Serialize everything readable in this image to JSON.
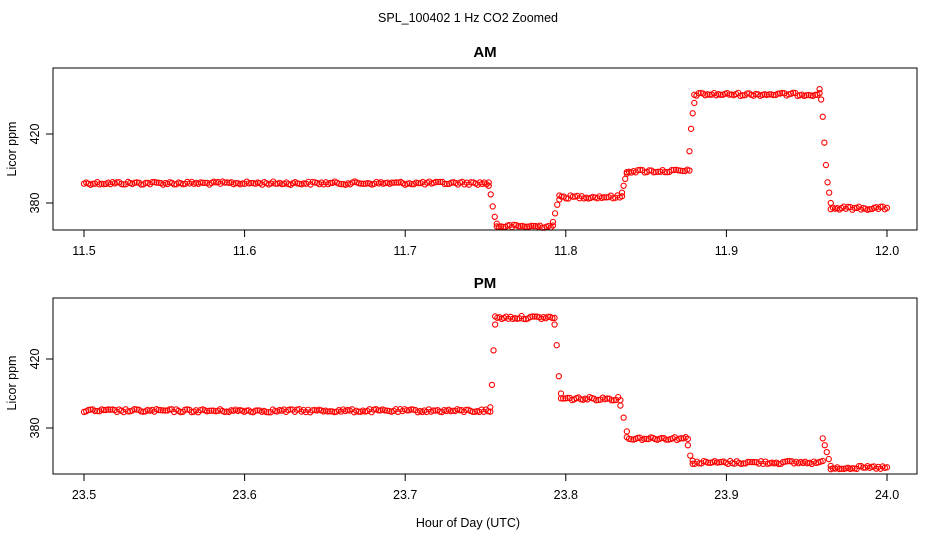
{
  "figure": {
    "title": "SPL_100402  1 Hz CO2 Zoomed",
    "xlabel": "Hour of Day (UTC)"
  },
  "colors": {
    "points": "#ff0000",
    "axis": "#000000",
    "background": "#ffffff"
  },
  "chart_data": [
    {
      "type": "scatter",
      "title": "AM",
      "ylabel": "Licor ppm",
      "xlim": [
        11.5,
        12.0
      ],
      "ylim": [
        346,
        438
      ],
      "xticks": [
        "11.5",
        "11.6",
        "11.7",
        "11.8",
        "11.9",
        "12.0"
      ],
      "xtick_values": [
        11.5,
        11.6,
        11.7,
        11.8,
        11.9,
        12.0
      ],
      "yticks": [
        "380",
        "420"
      ],
      "ytick_values": [
        380,
        420
      ],
      "marker": "open-circle",
      "segments": [
        {
          "x_start": 11.5,
          "x_end": 11.752,
          "y": 391.5
        },
        {
          "x_start": 11.757,
          "x_end": 11.792,
          "y": 366.5
        },
        {
          "x_start": 11.796,
          "x_end": 11.835,
          "y": 383.5
        },
        {
          "x_start": 11.838,
          "x_end": 11.877,
          "y": 398.5
        },
        {
          "x_start": 11.88,
          "x_end": 11.958,
          "y": 443
        },
        {
          "x_start": 11.965,
          "x_end": 12.0,
          "y": 377
        }
      ],
      "transitions": [
        {
          "x_start": 11.752,
          "x_end": 11.757,
          "y_values": [
            390,
            385,
            378,
            372,
            368
          ]
        },
        {
          "x_start": 11.792,
          "x_end": 11.796,
          "y_values": [
            369,
            374,
            379,
            382
          ]
        },
        {
          "x_start": 11.835,
          "x_end": 11.838,
          "y_values": [
            386,
            390,
            394,
            397
          ]
        },
        {
          "x_start": 11.877,
          "x_end": 11.88,
          "y_values": [
            410,
            423,
            432,
            438
          ]
        },
        {
          "x_start": 11.958,
          "x_end": 11.965,
          "y_values": [
            446,
            440,
            430,
            415,
            402,
            392,
            386,
            380
          ]
        }
      ]
    },
    {
      "type": "scatter",
      "title": "PM",
      "ylabel": "Licor ppm",
      "xlim": [
        23.5,
        24.0
      ],
      "ylim": [
        346,
        438
      ],
      "xticks": [
        "23.5",
        "23.6",
        "23.7",
        "23.8",
        "23.9",
        "24.0"
      ],
      "xtick_values": [
        23.5,
        23.6,
        23.7,
        23.8,
        23.9,
        24.0
      ],
      "yticks": [
        "380",
        "420"
      ],
      "ytick_values": [
        380,
        420
      ],
      "marker": "open-circle",
      "segments": [
        {
          "x_start": 23.5,
          "x_end": 23.753,
          "y": 390
        },
        {
          "x_start": 23.756,
          "x_end": 23.793,
          "y": 444
        },
        {
          "x_start": 23.797,
          "x_end": 23.834,
          "y": 397
        },
        {
          "x_start": 23.838,
          "x_end": 23.876,
          "y": 374
        },
        {
          "x_start": 23.879,
          "x_end": 23.96,
          "y": 360
        },
        {
          "x_start": 23.965,
          "x_end": 24.0,
          "y": 357
        }
      ],
      "transitions": [
        {
          "x_start": 23.753,
          "x_end": 23.756,
          "y_values": [
            392,
            405,
            425,
            440
          ]
        },
        {
          "x_start": 23.793,
          "x_end": 23.797,
          "y_values": [
            440,
            428,
            410,
            400
          ]
        },
        {
          "x_start": 23.834,
          "x_end": 23.838,
          "y_values": [
            393,
            386,
            378
          ]
        },
        {
          "x_start": 23.876,
          "x_end": 23.879,
          "y_values": [
            370,
            364,
            361
          ]
        },
        {
          "x_start": 23.96,
          "x_end": 23.965,
          "y_values": [
            374,
            370,
            366,
            362,
            358
          ]
        }
      ]
    }
  ]
}
